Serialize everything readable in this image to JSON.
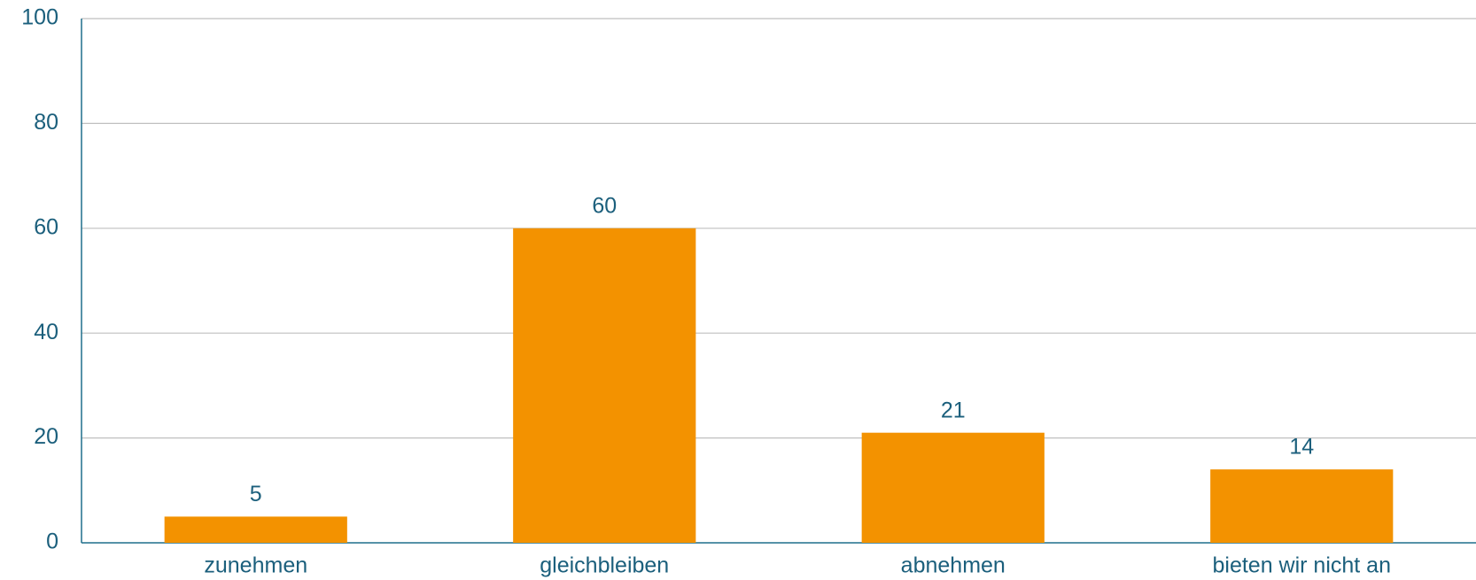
{
  "chart_data": {
    "type": "bar",
    "categories": [
      "zunehmen",
      "gleichbleiben",
      "abnehmen",
      "bieten wir nicht an"
    ],
    "values": [
      5,
      60,
      21,
      14
    ],
    "color": "#f39200",
    "ylim": [
      0,
      100
    ],
    "yticks": [
      0,
      20,
      40,
      60,
      80,
      100
    ],
    "grid": true
  }
}
